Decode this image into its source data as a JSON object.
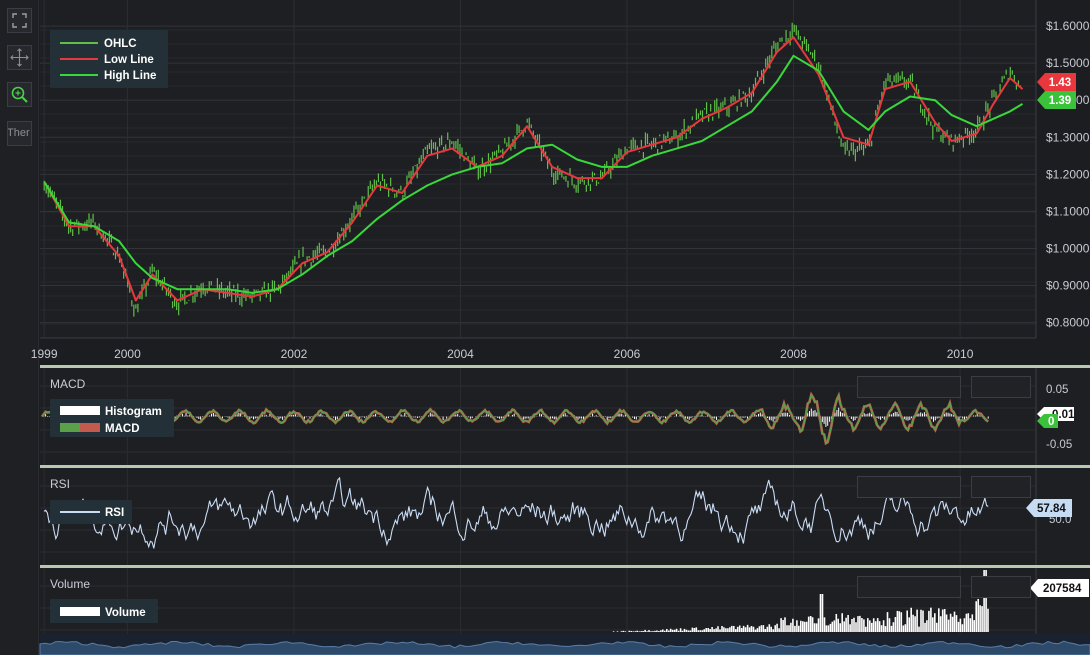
{
  "toolbar": {
    "buttons": [
      {
        "name": "fullscreen-icon"
      },
      {
        "name": "pan-icon"
      },
      {
        "name": "zoom-icon"
      },
      {
        "name": "theme-button",
        "label": "Ther"
      }
    ]
  },
  "colors": {
    "background": "#1c1d21",
    "grid": "#2c2e33",
    "ohlc": "#5fbf4a",
    "low_line": "#e8383d",
    "high_line": "#39d83a",
    "macd_hist": "#ffffff",
    "macd_line_green": "#5aa04a",
    "macd_line_red": "#c25a4e",
    "rsi": "#c9dcf5",
    "volume": "#ffffff",
    "badge_red": "#e8383d",
    "badge_green": "#39c23a"
  },
  "chart_data": [
    {
      "type": "line",
      "pane": "price",
      "series": [
        {
          "name": "OHLC"
        },
        {
          "name": "Low Line"
        },
        {
          "name": "High Line"
        }
      ],
      "x_ticks": [
        "1999",
        "2000",
        "2002",
        "2004",
        "2006",
        "2008",
        "2010"
      ],
      "y_ticks": [
        "$1.6000",
        "$1.5000",
        "$1.4000",
        "$1.3000",
        "$1.2000",
        "$1.1000",
        "$1.0000",
        "$0.9000",
        "$0.8000"
      ],
      "ylim": [
        0.78,
        1.63
      ],
      "x": [
        1999.0,
        1999.3,
        1999.6,
        1999.9,
        2000.1,
        2000.3,
        2000.6,
        2000.9,
        2001.2,
        2001.5,
        2001.8,
        2002.1,
        2002.4,
        2002.7,
        2003.0,
        2003.3,
        2003.6,
        2003.9,
        2004.2,
        2004.5,
        2004.8,
        2005.1,
        2005.4,
        2005.7,
        2006.0,
        2006.3,
        2006.6,
        2006.9,
        2007.2,
        2007.5,
        2007.8,
        2008.0,
        2008.3,
        2008.6,
        2008.9,
        2009.1,
        2009.4,
        2009.7,
        2009.9,
        2010.2,
        2010.4,
        2010.6,
        2010.75
      ],
      "ohlc_close": [
        1.18,
        1.06,
        1.07,
        0.98,
        0.83,
        0.94,
        0.85,
        0.9,
        0.88,
        0.87,
        0.89,
        0.97,
        0.99,
        1.08,
        1.18,
        1.15,
        1.26,
        1.29,
        1.21,
        1.26,
        1.34,
        1.21,
        1.18,
        1.19,
        1.27,
        1.28,
        1.3,
        1.36,
        1.38,
        1.42,
        1.55,
        1.59,
        1.5,
        1.26,
        1.27,
        1.45,
        1.45,
        1.32,
        1.29,
        1.32,
        1.4,
        1.48,
        1.43
      ],
      "low_line": [
        1.18,
        1.06,
        1.06,
        0.98,
        0.86,
        0.93,
        0.86,
        0.89,
        0.88,
        0.87,
        0.89,
        0.96,
        0.99,
        1.07,
        1.17,
        1.15,
        1.25,
        1.27,
        1.22,
        1.25,
        1.33,
        1.22,
        1.19,
        1.19,
        1.26,
        1.28,
        1.3,
        1.35,
        1.38,
        1.42,
        1.53,
        1.57,
        1.47,
        1.3,
        1.28,
        1.43,
        1.45,
        1.34,
        1.29,
        1.31,
        1.39,
        1.46,
        1.43
      ],
      "high_line": [
        1.18,
        1.07,
        1.06,
        1.02,
        0.96,
        0.92,
        0.89,
        0.89,
        0.89,
        0.88,
        0.89,
        0.93,
        0.98,
        1.02,
        1.08,
        1.13,
        1.17,
        1.2,
        1.22,
        1.23,
        1.27,
        1.28,
        1.24,
        1.22,
        1.22,
        1.25,
        1.27,
        1.29,
        1.33,
        1.37,
        1.45,
        1.52,
        1.48,
        1.37,
        1.32,
        1.37,
        1.41,
        1.4,
        1.36,
        1.33,
        1.35,
        1.37,
        1.39
      ],
      "badges": [
        {
          "label": "1.43",
          "color": "red"
        },
        {
          "label": "1.39",
          "color": "green"
        }
      ]
    },
    {
      "type": "line",
      "pane": "macd",
      "title": "MACD",
      "series": [
        {
          "name": "Histogram"
        },
        {
          "name": "MACD"
        }
      ],
      "y_ticks": [
        "0.05",
        "-0.05"
      ],
      "ylim": [
        -0.07,
        0.07
      ],
      "badges": [
        {
          "label": "0.01",
          "color": "white"
        },
        {
          "label": "0",
          "color": "green"
        }
      ]
    },
    {
      "type": "line",
      "pane": "rsi",
      "title": "RSI",
      "series": [
        {
          "name": "RSI"
        }
      ],
      "y_ticks": [
        "50.0"
      ],
      "ylim": [
        0,
        100
      ],
      "badges": [
        {
          "label": "57.84",
          "color": "blue"
        }
      ]
    },
    {
      "type": "bar",
      "pane": "volume",
      "title": "Volume",
      "series": [
        {
          "name": "Volume"
        }
      ],
      "badges": [
        {
          "label": "207584",
          "color": "white"
        }
      ]
    }
  ]
}
